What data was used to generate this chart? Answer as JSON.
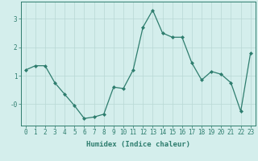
{
  "x": [
    0,
    1,
    2,
    3,
    4,
    5,
    6,
    7,
    8,
    9,
    10,
    11,
    12,
    13,
    14,
    15,
    16,
    17,
    18,
    19,
    20,
    21,
    22,
    23
  ],
  "y": [
    1.2,
    1.35,
    1.35,
    0.75,
    0.35,
    -0.05,
    -0.5,
    -0.45,
    -0.35,
    0.6,
    0.55,
    1.2,
    2.7,
    3.3,
    2.5,
    2.35,
    2.35,
    1.45,
    0.85,
    1.15,
    1.05,
    0.75,
    -0.25,
    1.8
  ],
  "line_color": "#2e7d6e",
  "marker": "D",
  "markersize": 2.0,
  "linewidth": 0.9,
  "xlabel": "Humidex (Indice chaleur)",
  "xlim": [
    -0.5,
    23.5
  ],
  "ylim": [
    -0.75,
    3.6
  ],
  "yticks": [
    0,
    1,
    2,
    3
  ],
  "ytick_labels": [
    "-0",
    "1",
    "2",
    "3"
  ],
  "xticks": [
    0,
    1,
    2,
    3,
    4,
    5,
    6,
    7,
    8,
    9,
    10,
    11,
    12,
    13,
    14,
    15,
    16,
    17,
    18,
    19,
    20,
    21,
    22,
    23
  ],
  "bg_color": "#d4eeec",
  "grid_color": "#b8d8d4",
  "label_fontsize": 6.5,
  "tick_fontsize": 5.5
}
